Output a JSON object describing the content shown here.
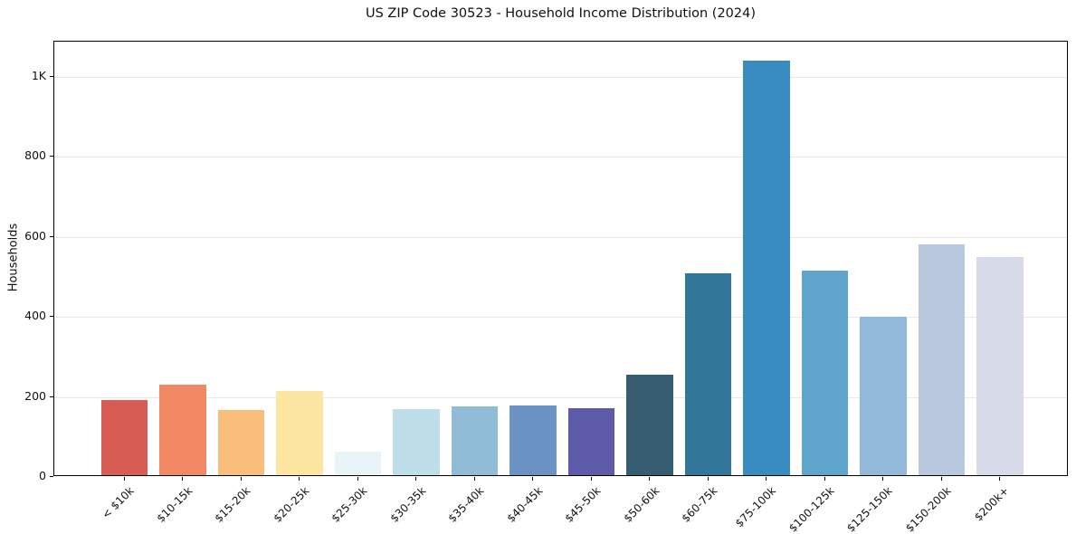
{
  "chart_data": {
    "type": "bar",
    "title": "US ZIP Code 30523 - Household Income Distribution (2024)",
    "xlabel": "",
    "ylabel": "Households",
    "categories": [
      "< $10k",
      "$10-15k",
      "$15-20k",
      "$20-25k",
      "$25-30k",
      "$30-35k",
      "$35-40k",
      "$40-45k",
      "$45-50k",
      "$50-60k",
      "$60-75k",
      "$75-100k",
      "$100-125k",
      "$125-150k",
      "$150-200k",
      "$200k+"
    ],
    "values": [
      187,
      227,
      163,
      211,
      60,
      165,
      172,
      175,
      168,
      251,
      505,
      1037,
      512,
      395,
      578,
      546
    ],
    "bar_colors": [
      "#d65c54",
      "#f18a64",
      "#fbbd7a",
      "#fde6a2",
      "#e8f4f7",
      "#bedee9",
      "#90bcd8",
      "#6b93c5",
      "#5c5aa9",
      "#365d70",
      "#32769a",
      "#388cc0",
      "#5fa4cb",
      "#92b9da",
      "#b9c8de",
      "#d7dae7"
    ],
    "yticks": {
      "values": [
        0,
        200,
        400,
        600,
        800,
        1000
      ],
      "labels": [
        "0",
        "200",
        "400",
        "600",
        "800",
        "1K"
      ]
    },
    "ylim": [
      0,
      1088
    ],
    "grid": "horizontal",
    "gridline_color": "#e9e9e9",
    "spine_color": "#000000",
    "legend": "none",
    "x_tick_rotation_deg": 45
  }
}
